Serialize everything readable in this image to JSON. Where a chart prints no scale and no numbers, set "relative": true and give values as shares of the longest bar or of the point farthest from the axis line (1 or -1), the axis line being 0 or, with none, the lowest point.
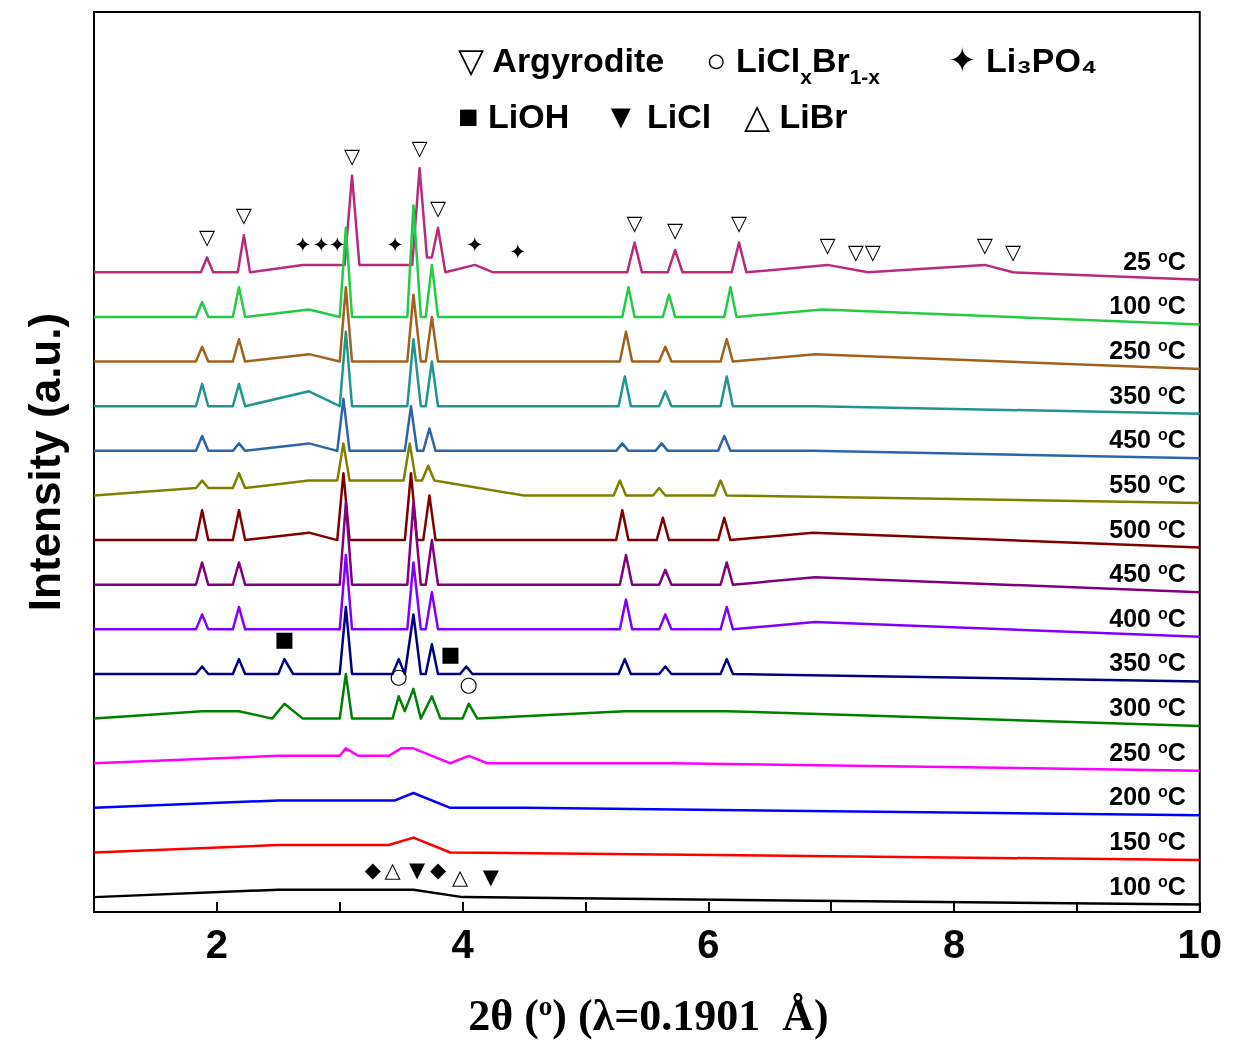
{
  "chart_data": {
    "type": "line",
    "relative": true,
    "xlabel": "2θ ($^{o}$) (λ=0.1901  Å)",
    "ylabel": "Intensity (a.u.)",
    "xlim": [
      1,
      10
    ],
    "xticks": [
      2,
      {
        "value": 3,
        "label": null
      },
      4,
      {
        "value": 5,
        "label": null
      },
      6,
      {
        "value": 7,
        "label": null
      },
      8,
      {
        "value": 9,
        "label": null
      },
      10
    ],
    "series": [
      {
        "name": "25 $^{o}$C",
        "color": "#b82a7c",
        "x": [
          1,
          1.87,
          1.92,
          1.97,
          2.17,
          2.22,
          2.27,
          2.7,
          3.04,
          3.1,
          3.16,
          3.59,
          3.65,
          3.71,
          3.75,
          3.8,
          3.86,
          4.1,
          4.25,
          5.34,
          5.4,
          5.46,
          5.67,
          5.73,
          5.79,
          6.19,
          6.25,
          6.31,
          6.97,
          7.3,
          8.25,
          8.48,
          10
        ],
        "values": [
          0.86,
          0.86,
          0.88,
          0.86,
          0.86,
          0.91,
          0.86,
          0.87,
          0.87,
          0.99,
          0.87,
          0.87,
          1,
          0.88,
          0.88,
          0.92,
          0.86,
          0.87,
          0.86,
          0.86,
          0.9,
          0.86,
          0.86,
          0.89,
          0.86,
          0.86,
          0.9,
          0.86,
          0.87,
          0.86,
          0.87,
          0.86,
          0.85
        ]
      },
      {
        "name": "100 $^{o}$C",
        "color": "#22cc44",
        "x": [
          1,
          1.83,
          1.88,
          1.93,
          2.13,
          2.18,
          2.23,
          2.75,
          3.0,
          3.05,
          3.1,
          3.55,
          3.6,
          3.66,
          3.7,
          3.75,
          3.8,
          5.3,
          5.35,
          5.4,
          5.63,
          5.68,
          5.73,
          6.13,
          6.18,
          6.23,
          6.93,
          10
        ],
        "values": [
          0.8,
          0.8,
          0.82,
          0.8,
          0.8,
          0.84,
          0.8,
          0.81,
          0.8,
          0.92,
          0.8,
          0.8,
          0.95,
          0.8,
          0.8,
          0.87,
          0.8,
          0.8,
          0.84,
          0.8,
          0.8,
          0.83,
          0.8,
          0.8,
          0.84,
          0.8,
          0.81,
          0.79
        ]
      },
      {
        "name": "250 $^{o}$C",
        "color": "#a0621e",
        "x": [
          1,
          1.83,
          1.88,
          1.93,
          2.13,
          2.18,
          2.23,
          2.75,
          3.0,
          3.05,
          3.1,
          3.55,
          3.6,
          3.66,
          3.7,
          3.75,
          3.8,
          5.28,
          5.33,
          5.38,
          5.6,
          5.65,
          5.7,
          6.1,
          6.15,
          6.2,
          6.87,
          10
        ],
        "values": [
          0.74,
          0.74,
          0.76,
          0.74,
          0.74,
          0.77,
          0.74,
          0.75,
          0.74,
          0.84,
          0.74,
          0.74,
          0.83,
          0.74,
          0.74,
          0.8,
          0.74,
          0.74,
          0.78,
          0.74,
          0.74,
          0.76,
          0.74,
          0.74,
          0.77,
          0.74,
          0.75,
          0.73
        ]
      },
      {
        "name": "350 $^{o}$C",
        "color": "#20958f",
        "x": [
          1,
          1.83,
          1.88,
          1.93,
          2.13,
          2.18,
          2.23,
          2.75,
          3.0,
          3.05,
          3.1,
          3.55,
          3.6,
          3.66,
          3.7,
          3.75,
          3.8,
          5.27,
          5.32,
          5.37,
          5.6,
          5.65,
          5.7,
          6.1,
          6.15,
          6.2,
          6.87,
          10
        ],
        "values": [
          0.68,
          0.68,
          0.71,
          0.68,
          0.68,
          0.71,
          0.68,
          0.7,
          0.68,
          0.78,
          0.68,
          0.68,
          0.77,
          0.68,
          0.68,
          0.74,
          0.68,
          0.68,
          0.72,
          0.68,
          0.68,
          0.7,
          0.68,
          0.68,
          0.72,
          0.68,
          0.68,
          0.67
        ]
      },
      {
        "name": "450 $^{o}$C",
        "color": "#2e64a8",
        "x": [
          1,
          1.83,
          1.88,
          1.93,
          2.13,
          2.18,
          2.23,
          2.75,
          2.98,
          3.03,
          3.08,
          3.53,
          3.58,
          3.63,
          3.68,
          3.73,
          3.78,
          5.25,
          5.3,
          5.35,
          5.57,
          5.62,
          5.67,
          6.08,
          6.13,
          6.18,
          6.85,
          10
        ],
        "values": [
          0.62,
          0.62,
          0.64,
          0.62,
          0.62,
          0.63,
          0.62,
          0.63,
          0.62,
          0.69,
          0.62,
          0.62,
          0.68,
          0.62,
          0.62,
          0.65,
          0.62,
          0.62,
          0.63,
          0.62,
          0.62,
          0.63,
          0.62,
          0.62,
          0.64,
          0.62,
          0.62,
          0.61
        ]
      },
      {
        "name": "550 $^{o}$C",
        "color": "#808000",
        "x": [
          1,
          1.83,
          1.88,
          1.93,
          2.13,
          2.18,
          2.23,
          2.75,
          2.98,
          3.03,
          3.08,
          3.52,
          3.57,
          3.62,
          3.67,
          3.72,
          3.77,
          4.5,
          5.23,
          5.28,
          5.33,
          5.55,
          5.6,
          5.65,
          6.05,
          6.1,
          6.15,
          10
        ],
        "values": [
          0.56,
          0.57,
          0.58,
          0.57,
          0.57,
          0.59,
          0.57,
          0.58,
          0.58,
          0.63,
          0.58,
          0.58,
          0.63,
          0.58,
          0.58,
          0.6,
          0.58,
          0.56,
          0.56,
          0.58,
          0.56,
          0.56,
          0.57,
          0.56,
          0.56,
          0.58,
          0.56,
          0.55
        ]
      },
      {
        "name": "500 $^{o}$C",
        "color": "#800000",
        "x": [
          1,
          1.83,
          1.88,
          1.93,
          2.13,
          2.18,
          2.23,
          2.75,
          2.98,
          3.03,
          3.08,
          3.53,
          3.58,
          3.63,
          3.68,
          3.73,
          3.78,
          5.25,
          5.3,
          5.35,
          5.58,
          5.63,
          5.68,
          6.08,
          6.13,
          6.18,
          6.85,
          10
        ],
        "values": [
          0.5,
          0.5,
          0.54,
          0.5,
          0.5,
          0.54,
          0.5,
          0.51,
          0.5,
          0.59,
          0.5,
          0.5,
          0.59,
          0.5,
          0.5,
          0.56,
          0.5,
          0.5,
          0.54,
          0.5,
          0.5,
          0.53,
          0.5,
          0.5,
          0.53,
          0.5,
          0.51,
          0.49
        ]
      },
      {
        "name": "450 $^{o}$C",
        "color": "#800080",
        "x": [
          1,
          1.83,
          1.88,
          1.93,
          2.13,
          2.18,
          2.23,
          2.75,
          3.0,
          3.05,
          3.1,
          3.55,
          3.6,
          3.66,
          3.7,
          3.75,
          3.8,
          5.28,
          5.33,
          5.38,
          5.6,
          5.65,
          5.7,
          6.1,
          6.15,
          6.2,
          6.87,
          10
        ],
        "values": [
          0.44,
          0.44,
          0.47,
          0.44,
          0.44,
          0.47,
          0.44,
          0.44,
          0.44,
          0.55,
          0.44,
          0.44,
          0.55,
          0.44,
          0.44,
          0.5,
          0.44,
          0.44,
          0.48,
          0.44,
          0.44,
          0.46,
          0.44,
          0.44,
          0.47,
          0.44,
          0.45,
          0.43
        ]
      },
      {
        "name": "400 $^{o}$C",
        "color": "#8000ff",
        "x": [
          1,
          1.83,
          1.88,
          1.93,
          2.13,
          2.18,
          2.23,
          2.75,
          3.0,
          3.05,
          3.1,
          3.55,
          3.6,
          3.66,
          3.7,
          3.75,
          3.8,
          5.28,
          5.33,
          5.38,
          5.6,
          5.65,
          5.7,
          6.1,
          6.15,
          6.2,
          6.87,
          10
        ],
        "values": [
          0.38,
          0.38,
          0.4,
          0.38,
          0.38,
          0.41,
          0.38,
          0.38,
          0.38,
          0.48,
          0.38,
          0.38,
          0.47,
          0.38,
          0.38,
          0.43,
          0.38,
          0.38,
          0.42,
          0.38,
          0.38,
          0.4,
          0.38,
          0.38,
          0.41,
          0.38,
          0.39,
          0.37
        ]
      },
      {
        "name": "350 $^{o}$C",
        "color": "#000080",
        "x": [
          1,
          1.83,
          1.88,
          1.93,
          2.13,
          2.18,
          2.23,
          2.5,
          2.55,
          2.62,
          3.0,
          3.05,
          3.1,
          3.43,
          3.48,
          3.53,
          3.6,
          3.66,
          3.7,
          3.75,
          3.8,
          3.98,
          4.03,
          4.08,
          5.27,
          5.32,
          5.37,
          5.6,
          5.65,
          5.7,
          6.1,
          6.15,
          6.2,
          10
        ],
        "values": [
          0.32,
          0.32,
          0.33,
          0.32,
          0.32,
          0.34,
          0.32,
          0.32,
          0.34,
          0.32,
          0.32,
          0.41,
          0.32,
          0.32,
          0.34,
          0.32,
          0.4,
          0.32,
          0.32,
          0.36,
          0.32,
          0.32,
          0.33,
          0.32,
          0.32,
          0.34,
          0.32,
          0.32,
          0.33,
          0.32,
          0.32,
          0.34,
          0.32,
          0.31
        ]
      },
      {
        "name": "300 $^{o}$C",
        "color": "#008000",
        "x": [
          1,
          1.88,
          2.18,
          2.45,
          2.55,
          2.7,
          3.0,
          3.05,
          3.1,
          3.43,
          3.48,
          3.53,
          3.6,
          3.66,
          3.75,
          3.82,
          4.0,
          4.05,
          4.12,
          5.32,
          6.15,
          10
        ],
        "values": [
          0.26,
          0.27,
          0.27,
          0.26,
          0.28,
          0.26,
          0.26,
          0.32,
          0.26,
          0.26,
          0.29,
          0.27,
          0.3,
          0.26,
          0.29,
          0.26,
          0.26,
          0.28,
          0.26,
          0.27,
          0.27,
          0.25
        ]
      },
      {
        "name": "250 $^{o}$C",
        "color": "#ff00ff",
        "x": [
          1,
          2.5,
          3.0,
          3.05,
          3.15,
          3.4,
          3.5,
          3.6,
          3.75,
          3.9,
          4.05,
          4.2,
          5.7,
          10
        ],
        "values": [
          0.2,
          0.21,
          0.21,
          0.22,
          0.21,
          0.21,
          0.22,
          0.22,
          0.21,
          0.2,
          0.21,
          0.2,
          0.2,
          0.19
        ]
      },
      {
        "name": "200 $^{o}$C",
        "color": "#0000ff",
        "x": [
          1,
          2.5,
          3.05,
          3.2,
          3.45,
          3.6,
          3.9,
          4.5,
          10
        ],
        "values": [
          0.14,
          0.15,
          0.15,
          0.15,
          0.15,
          0.16,
          0.14,
          0.14,
          0.13
        ]
      },
      {
        "name": "150 $^{o}$C",
        "color": "#ff0000",
        "x": [
          1,
          2.5,
          3.4,
          3.6,
          3.9,
          10
        ],
        "values": [
          0.08,
          0.09,
          0.09,
          0.1,
          0.08,
          0.07
        ]
      },
      {
        "name": "100 $^{o}$C",
        "color": "#000000",
        "x": [
          1,
          2.5,
          3.0,
          3.3,
          3.6,
          4.0,
          10
        ],
        "values": [
          0.02,
          0.03,
          0.03,
          0.03,
          0.03,
          0.02,
          0.01
        ]
      }
    ],
    "annotations": [
      "▽ Argyrodite",
      "○ LiCl$_{x}$Br$_{1-x}$",
      "✦ Li₃PO₄",
      "■ LiOH",
      "▼ LiCl",
      "△ LiBr",
      {
        "text": "▽",
        "x": 1.92,
        "y": 0.88
      },
      {
        "text": "▽",
        "x": 2.22,
        "y": 0.91
      },
      {
        "text": "▽",
        "x": 3.1,
        "y": 0.99
      },
      {
        "text": "▽",
        "x": 3.65,
        "y": 1
      },
      {
        "text": "▽",
        "x": 3.8,
        "y": 0.92
      },
      {
        "text": "▽",
        "x": 5.4,
        "y": 0.9
      },
      {
        "text": "▽",
        "x": 5.73,
        "y": 0.89
      },
      {
        "text": "▽",
        "x": 6.25,
        "y": 0.9
      },
      {
        "text": "▽",
        "x": 6.97,
        "y": 0.87
      },
      {
        "text": "▽",
        "x": 7.2,
        "y": 0.86
      },
      {
        "text": "▽",
        "x": 7.34,
        "y": 0.86
      },
      {
        "text": "▽",
        "x": 8.25,
        "y": 0.87
      },
      {
        "text": "▽",
        "x": 8.48,
        "y": 0.86
      },
      {
        "text": "✦",
        "x": 2.7,
        "y": 0.87
      },
      {
        "text": "✦",
        "x": 2.85,
        "y": 0.87
      },
      {
        "text": "✦",
        "x": 2.98,
        "y": 0.87
      },
      {
        "text": "✦",
        "x": 3.45,
        "y": 0.87
      },
      {
        "text": "✦",
        "x": 4.1,
        "y": 0.87
      },
      {
        "text": "✦",
        "x": 4.45,
        "y": 0.86
      },
      {
        "text": "■",
        "x": 2.55,
        "y": 0.34
      },
      {
        "text": "■",
        "x": 3.9,
        "y": 0.32
      },
      {
        "text": "○",
        "x": 3.48,
        "y": 0.29
      },
      {
        "text": "○",
        "x": 4.05,
        "y": 0.28
      },
      {
        "text": "◆",
        "x": 3.27,
        "y": 0.03
      },
      {
        "text": "△",
        "x": 3.43,
        "y": 0.03
      },
      {
        "text": "▼",
        "x": 3.63,
        "y": 0.03
      },
      {
        "text": "◆",
        "x": 3.8,
        "y": 0.03
      },
      {
        "text": "△",
        "x": 3.98,
        "y": 0.02
      },
      {
        "text": "▼",
        "x": 4.23,
        "y": 0.02
      }
    ]
  }
}
